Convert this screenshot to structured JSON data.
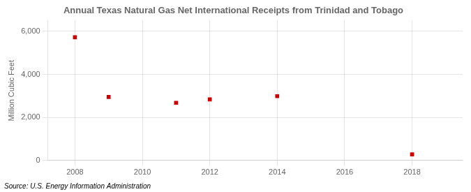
{
  "chart_data": {
    "type": "scatter",
    "title": "Annual Texas Natural Gas Net International Receipts from Trinidad and Tobago",
    "y_label": "Million Cubic Feet",
    "annotations": [
      "Source: U.S. Energy Information Administration"
    ],
    "x": [
      2008,
      2009,
      2011,
      2012,
      2014,
      2018
    ],
    "values": [
      5730,
      2950,
      2680,
      2840,
      2990,
      280
    ],
    "color": "#cc0000",
    "marker": "square",
    "xlim": [
      2007.2,
      2019.5
    ],
    "xticks": [
      2008,
      2010,
      2012,
      2014,
      2016,
      2018
    ],
    "ylim": [
      0,
      6500
    ],
    "yticks": [
      0,
      {
        "value": 2000,
        "label": "2,000"
      },
      {
        "value": 4000,
        "label": "4,000"
      },
      {
        "value": 6000,
        "label": "6,000"
      }
    ],
    "grid": true
  }
}
